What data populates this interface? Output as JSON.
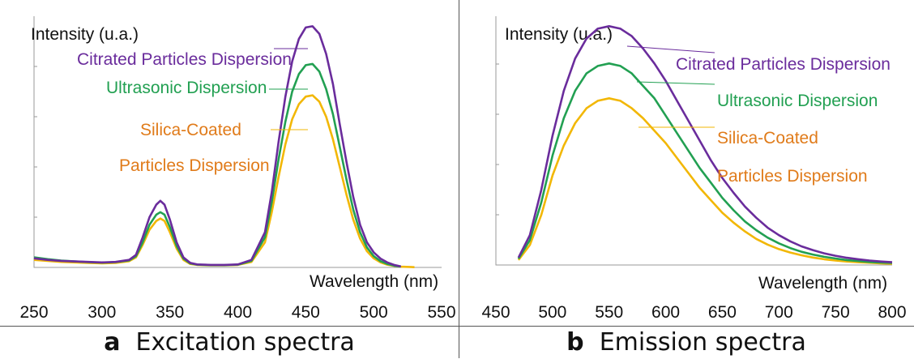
{
  "colors": {
    "citrated": "#6a2c9c",
    "ultrasonic": "#22a052",
    "silica": "#f2b705",
    "silica_label": "#e07b1a",
    "axis": "#999999"
  },
  "captions": {
    "a": {
      "letter": "a",
      "text": "Excitation spectra"
    },
    "b": {
      "letter": "b",
      "text": "Emission spectra"
    }
  },
  "chart_data": [
    {
      "type": "line",
      "ylabel": "Intensity (u.a.)",
      "xlabel": "Wavelength (nm)",
      "xlim": [
        250,
        550
      ],
      "ylim": [
        0,
        1.0
      ],
      "xticks": [
        "250",
        "300",
        "350",
        "400",
        "450",
        "500",
        "550"
      ],
      "grid": false,
      "series": [
        {
          "name": "Citrated Particles Dispersion",
          "color": "#6a2c9c",
          "x": [
            250,
            260,
            270,
            280,
            290,
            300,
            310,
            320,
            325,
            330,
            335,
            340,
            343,
            346,
            350,
            355,
            360,
            365,
            370,
            380,
            390,
            400,
            410,
            420,
            425,
            430,
            435,
            440,
            445,
            450,
            455,
            460,
            465,
            470,
            475,
            480,
            485,
            490,
            495,
            500,
            505,
            510,
            515,
            520
          ],
          "y": [
            0.036,
            0.03,
            0.026,
            0.024,
            0.022,
            0.02,
            0.022,
            0.03,
            0.05,
            0.12,
            0.2,
            0.25,
            0.265,
            0.25,
            0.19,
            0.1,
            0.04,
            0.018,
            0.012,
            0.01,
            0.01,
            0.012,
            0.03,
            0.14,
            0.3,
            0.5,
            0.68,
            0.82,
            0.91,
            0.955,
            0.96,
            0.93,
            0.85,
            0.73,
            0.57,
            0.42,
            0.28,
            0.17,
            0.1,
            0.06,
            0.035,
            0.02,
            0.01,
            0.004
          ]
        },
        {
          "name": "Ultrasonic Dispersion",
          "color": "#22a052",
          "x": [
            250,
            260,
            270,
            280,
            290,
            300,
            310,
            320,
            325,
            330,
            335,
            340,
            343,
            346,
            350,
            355,
            360,
            365,
            370,
            380,
            390,
            400,
            410,
            420,
            425,
            430,
            435,
            440,
            445,
            450,
            455,
            460,
            465,
            470,
            475,
            480,
            485,
            490,
            495,
            500,
            505,
            510,
            515,
            520
          ],
          "y": [
            0.04,
            0.033,
            0.027,
            0.024,
            0.021,
            0.019,
            0.021,
            0.028,
            0.045,
            0.1,
            0.17,
            0.21,
            0.22,
            0.21,
            0.16,
            0.085,
            0.035,
            0.016,
            0.011,
            0.009,
            0.009,
            0.011,
            0.026,
            0.12,
            0.26,
            0.43,
            0.58,
            0.7,
            0.77,
            0.805,
            0.81,
            0.78,
            0.71,
            0.61,
            0.48,
            0.35,
            0.23,
            0.14,
            0.08,
            0.045,
            0.025,
            0.014,
            0.007,
            0.003
          ]
        },
        {
          "name": "Silica-Coated Particles Dispersion",
          "color": "#f2b705",
          "x": [
            250,
            260,
            270,
            280,
            290,
            300,
            310,
            320,
            325,
            330,
            335,
            340,
            343,
            346,
            350,
            355,
            360,
            365,
            370,
            380,
            390,
            400,
            410,
            420,
            425,
            430,
            435,
            440,
            445,
            450,
            455,
            460,
            465,
            470,
            475,
            480,
            485,
            490,
            495,
            500,
            505,
            510,
            515,
            520,
            530
          ],
          "y": [
            0.03,
            0.026,
            0.022,
            0.02,
            0.018,
            0.016,
            0.018,
            0.025,
            0.04,
            0.09,
            0.15,
            0.185,
            0.195,
            0.185,
            0.14,
            0.075,
            0.03,
            0.014,
            0.01,
            0.008,
            0.008,
            0.01,
            0.022,
            0.1,
            0.22,
            0.36,
            0.49,
            0.59,
            0.65,
            0.68,
            0.685,
            0.66,
            0.6,
            0.51,
            0.4,
            0.29,
            0.19,
            0.115,
            0.065,
            0.036,
            0.02,
            0.011,
            0.006,
            0.003,
            0.001
          ]
        }
      ]
    },
    {
      "type": "line",
      "ylabel": "Intensity (u.a.)",
      "xlabel": "Wavelength (nm)",
      "xlim": [
        450,
        800
      ],
      "ylim": [
        0,
        1.0
      ],
      "xticks": [
        "450",
        "500",
        "550",
        "600",
        "650",
        "700",
        "750",
        "800"
      ],
      "grid": false,
      "series": [
        {
          "name": "Citrated Particles Dispersion",
          "color": "#6a2c9c",
          "x": [
            470,
            480,
            490,
            500,
            510,
            520,
            530,
            540,
            550,
            560,
            570,
            580,
            590,
            600,
            610,
            620,
            630,
            640,
            650,
            660,
            670,
            680,
            690,
            700,
            710,
            720,
            730,
            740,
            750,
            760,
            770,
            780,
            790,
            800
          ],
          "y": [
            0.03,
            0.12,
            0.3,
            0.52,
            0.7,
            0.83,
            0.91,
            0.95,
            0.96,
            0.95,
            0.92,
            0.87,
            0.81,
            0.74,
            0.66,
            0.58,
            0.5,
            0.42,
            0.35,
            0.29,
            0.235,
            0.19,
            0.15,
            0.12,
            0.095,
            0.075,
            0.06,
            0.047,
            0.037,
            0.029,
            0.023,
            0.018,
            0.014,
            0.011
          ]
        },
        {
          "name": "Ultrasonic Dispersion",
          "color": "#22a052",
          "x": [
            470,
            480,
            490,
            500,
            510,
            520,
            530,
            540,
            550,
            560,
            570,
            580,
            590,
            600,
            610,
            620,
            630,
            640,
            650,
            660,
            670,
            680,
            690,
            700,
            710,
            720,
            730,
            740,
            750,
            760,
            770,
            780,
            790,
            800
          ],
          "y": [
            0.025,
            0.1,
            0.25,
            0.44,
            0.59,
            0.7,
            0.77,
            0.8,
            0.81,
            0.8,
            0.77,
            0.72,
            0.67,
            0.6,
            0.53,
            0.46,
            0.39,
            0.33,
            0.27,
            0.22,
            0.175,
            0.14,
            0.11,
            0.087,
            0.068,
            0.053,
            0.042,
            0.033,
            0.026,
            0.02,
            0.016,
            0.012,
            0.01,
            0.008
          ]
        },
        {
          "name": "Silica-Coated Particles Dispersion",
          "color": "#f2b705",
          "x": [
            470,
            480,
            490,
            500,
            510,
            520,
            530,
            540,
            550,
            560,
            570,
            580,
            590,
            600,
            610,
            620,
            630,
            640,
            650,
            660,
            670,
            680,
            690,
            700,
            710,
            720,
            730,
            740,
            750,
            760,
            770,
            780,
            790,
            800
          ],
          "y": [
            0.02,
            0.08,
            0.2,
            0.36,
            0.48,
            0.57,
            0.63,
            0.66,
            0.67,
            0.66,
            0.63,
            0.59,
            0.54,
            0.49,
            0.43,
            0.37,
            0.31,
            0.26,
            0.21,
            0.17,
            0.135,
            0.105,
            0.082,
            0.064,
            0.05,
            0.039,
            0.03,
            0.023,
            0.018,
            0.014,
            0.011,
            0.009,
            0.007,
            0.005
          ]
        }
      ]
    }
  ],
  "annotations": {
    "a": [
      {
        "text": "Citrated Particles Dispersion",
        "series": 0
      },
      {
        "text": "Ultrasonic Dispersion",
        "series": 1
      },
      {
        "text": "Silica-Coated",
        "series": 2
      },
      {
        "text": "Particles Dispersion",
        "series": 2
      }
    ],
    "b": [
      {
        "text": "Citrated Particles Dispersion",
        "series": 0
      },
      {
        "text": "Ultrasonic Dispersion",
        "series": 1
      },
      {
        "text": "Silica-Coated",
        "series": 2
      },
      {
        "text": "Particles Dispersion",
        "series": 2
      }
    ]
  }
}
